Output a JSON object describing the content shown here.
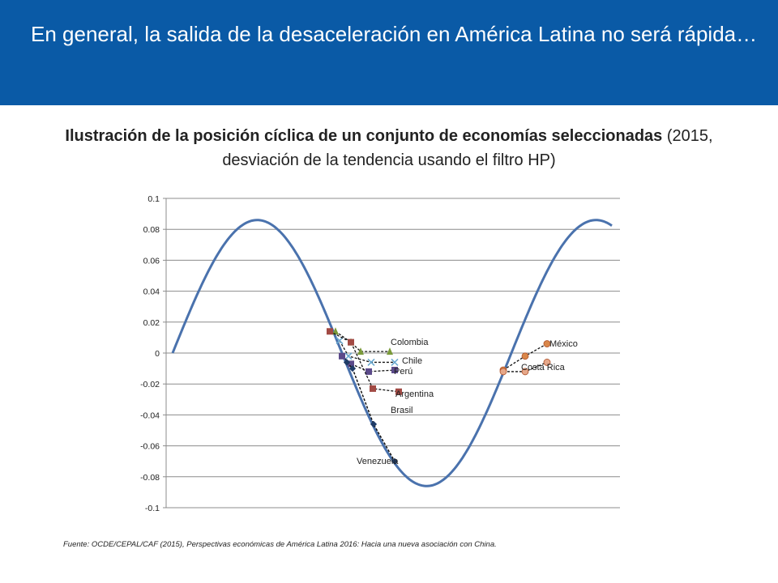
{
  "header": {
    "title": "En general, la salida de la desaceleración en América Latina no será rápida…"
  },
  "chart_heading": {
    "bold": "Ilustración de la posición cíclica de un conjunto de economías seleccionadas",
    "normal": " (2015, desviación de la tendencia usando el filtro HP)"
  },
  "source": "Fuente: OCDE/CEPAL/CAF (2015), Perspectivas económicas de América Latina 2016: Hacia una nueva asociación con China.",
  "colors": {
    "banner": "#0a5aa6",
    "curve": "#4a72ad",
    "grid": "#8c8c8c",
    "dotted": "#111111"
  },
  "chart_data": {
    "type": "scatter",
    "ylim": [
      -0.1,
      0.1
    ],
    "yticks": [
      "0.1",
      "0.08",
      "0.06",
      "0.04",
      "0.02",
      "0",
      "-0.02",
      "-0.04",
      "-0.06",
      "-0.08",
      "-0.1"
    ],
    "grid": true,
    "countries": [
      {
        "name": "Colombia",
        "color": "#7a9a3a",
        "marker": "triangle",
        "points": [
          0.014,
          0.007,
          0.001,
          0.001
        ]
      },
      {
        "name": "Chile",
        "color": "#6aa9d0",
        "marker": "x",
        "points": [
          0.008,
          -0.002,
          -0.006,
          -0.006
        ]
      },
      {
        "name": "Perú",
        "color": "#5b4a8a",
        "marker": "square",
        "points": [
          -0.002,
          -0.007,
          -0.012,
          -0.011
        ]
      },
      {
        "name": "Argentina",
        "color": "#a24a44",
        "marker": "square",
        "points": [
          0.014,
          0.007,
          -0.023,
          -0.025
        ]
      },
      {
        "name": "Brasil",
        "color": "#1f3b66",
        "marker": "diamond",
        "points": [
          -0.006,
          -0.01,
          -0.046,
          -0.07
        ]
      },
      {
        "name": "Venezuela",
        "color": "#1f3b66",
        "marker": "diamond",
        "points": [
          -0.006,
          -0.01,
          -0.046,
          -0.07
        ]
      },
      {
        "name": "México",
        "color": "#d9874a",
        "marker": "circle",
        "points": [
          -0.011,
          -0.002,
          0.006
        ]
      },
      {
        "name": "Costa Rica",
        "color": "#e6a88a",
        "marker": "circle",
        "points": [
          -0.012,
          -0.012,
          -0.006
        ]
      }
    ]
  }
}
